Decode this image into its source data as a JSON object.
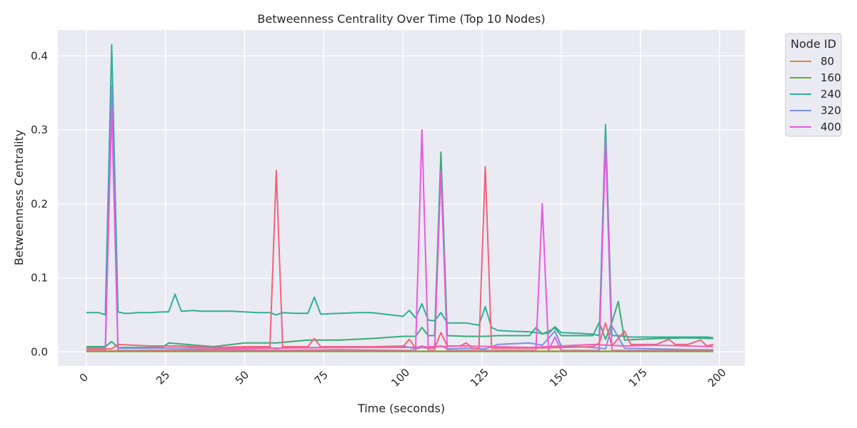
{
  "chart_data": {
    "type": "line",
    "title": "Betweenness Centrality Over Time (Top 10 Nodes)",
    "xlabel": "Time (seconds)",
    "ylabel": "Betweenness Centrality",
    "xlim": [
      -9,
      208
    ],
    "ylim": [
      -0.019,
      0.435
    ],
    "xticks": [
      0,
      25,
      50,
      75,
      100,
      125,
      150,
      175,
      200
    ],
    "xtick_labels": [
      "0",
      "25",
      "50",
      "75",
      "100",
      "125",
      "150",
      "175",
      "200"
    ],
    "yticks": [
      0.0,
      0.1,
      0.2,
      0.3,
      0.4
    ],
    "ytick_labels": [
      "0.0",
      "0.1",
      "0.2",
      "0.3",
      "0.4"
    ],
    "grid": true,
    "legend": {
      "title": "Node ID",
      "placement": "outside-top-right",
      "entries": [
        {
          "label": "80",
          "color": "#d98b3a"
        },
        {
          "label": "160",
          "color": "#6aab35"
        },
        {
          "label": "240",
          "color": "#2fb09a"
        },
        {
          "label": "320",
          "color": "#7a90e8"
        },
        {
          "label": "400",
          "color": "#e65be0"
        }
      ]
    },
    "series": [
      {
        "color": "#2fb09a",
        "x": [
          0,
          4,
          6,
          8,
          10,
          12,
          14,
          16,
          20,
          24,
          26,
          28,
          30,
          34,
          36,
          40,
          44,
          46,
          50,
          54,
          58,
          60,
          62,
          66,
          70,
          72,
          74,
          80,
          86,
          90,
          96,
          100,
          102,
          104,
          106,
          108,
          110,
          112,
          114,
          120,
          124,
          126,
          128,
          130,
          134,
          140,
          144,
          146,
          148,
          150,
          156,
          160,
          162,
          164,
          166,
          168,
          172,
          180,
          184,
          190,
          196,
          198
        ],
        "y": [
          0.053,
          0.053,
          0.05,
          0.415,
          0.054,
          0.052,
          0.052,
          0.053,
          0.053,
          0.054,
          0.054,
          0.078,
          0.055,
          0.056,
          0.055,
          0.055,
          0.055,
          0.055,
          0.054,
          0.053,
          0.053,
          0.05,
          0.053,
          0.052,
          0.052,
          0.074,
          0.051,
          0.052,
          0.053,
          0.053,
          0.05,
          0.048,
          0.056,
          0.046,
          0.065,
          0.043,
          0.042,
          0.053,
          0.039,
          0.039,
          0.036,
          0.061,
          0.033,
          0.029,
          0.028,
          0.027,
          0.025,
          0.025,
          0.034,
          0.026,
          0.025,
          0.024,
          0.022,
          0.307,
          0.022,
          0.022,
          0.02,
          0.02,
          0.02,
          0.02,
          0.02,
          0.019
        ]
      },
      {
        "color": "#36ad7a",
        "x": [
          0,
          6,
          8,
          10,
          20,
          24,
          26,
          40,
          50,
          60,
          70,
          80,
          90,
          100,
          104,
          106,
          108,
          110,
          112,
          114,
          120,
          126,
          130,
          140,
          142,
          144,
          148,
          150,
          160,
          162,
          164,
          166,
          168,
          170,
          180,
          190,
          198
        ],
        "y": [
          0.007,
          0.007,
          0.014,
          0.006,
          0.006,
          0.006,
          0.012,
          0.007,
          0.012,
          0.012,
          0.016,
          0.016,
          0.018,
          0.021,
          0.021,
          0.033,
          0.022,
          0.022,
          0.27,
          0.022,
          0.021,
          0.021,
          0.022,
          0.022,
          0.033,
          0.024,
          0.032,
          0.022,
          0.022,
          0.04,
          0.017,
          0.04,
          0.068,
          0.016,
          0.018,
          0.019,
          0.018
        ]
      },
      {
        "color": "#7a90e8",
        "x": [
          0,
          6,
          8,
          10,
          20,
          40,
          58,
          60,
          62,
          80,
          100,
          104,
          106,
          108,
          112,
          114,
          120,
          126,
          130,
          140,
          144,
          148,
          150,
          160,
          164,
          166,
          170,
          180,
          190,
          198
        ],
        "y": [
          0.005,
          0.005,
          0.36,
          0.005,
          0.005,
          0.006,
          0.006,
          0.004,
          0.006,
          0.006,
          0.008,
          0.004,
          0.006,
          0.005,
          0.008,
          0.004,
          0.005,
          0.004,
          0.01,
          0.012,
          0.009,
          0.028,
          0.008,
          0.006,
          0.004,
          0.035,
          0.005,
          0.004,
          0.003,
          0.003
        ]
      },
      {
        "color": "#e65be0",
        "x": [
          0,
          6,
          8,
          10,
          12,
          20,
          40,
          60,
          80,
          100,
          104,
          106,
          108,
          110,
          112,
          114,
          120,
          130,
          140,
          142,
          144,
          146,
          148,
          150,
          160,
          162,
          164,
          166,
          170,
          180,
          190,
          198
        ],
        "y": [
          0.002,
          0.002,
          0.33,
          0.002,
          0.002,
          0.002,
          0.003,
          0.002,
          0.003,
          0.002,
          0.002,
          0.3,
          0.002,
          0.002,
          0.245,
          0.002,
          0.002,
          0.002,
          0.002,
          0.002,
          0.2,
          0.002,
          0.02,
          0.002,
          0.002,
          0.002,
          0.285,
          0.002,
          0.002,
          0.002,
          0.002,
          0.002
        ]
      },
      {
        "color": "#f0637e",
        "x": [
          0,
          8,
          10,
          20,
          30,
          40,
          50,
          58,
          60,
          62,
          70,
          72,
          74,
          80,
          90,
          100,
          102,
          104,
          106,
          108,
          110,
          112,
          114,
          118,
          120,
          122,
          124,
          126,
          128,
          130,
          140,
          150,
          160,
          162,
          164,
          166,
          170,
          172,
          180,
          184,
          186,
          190,
          194,
          196,
          198
        ],
        "y": [
          0.004,
          0.004,
          0.01,
          0.008,
          0.008,
          0.006,
          0.007,
          0.007,
          0.245,
          0.007,
          0.007,
          0.018,
          0.007,
          0.007,
          0.007,
          0.007,
          0.017,
          0.005,
          0.008,
          0.005,
          0.005,
          0.026,
          0.008,
          0.008,
          0.012,
          0.005,
          0.005,
          0.25,
          0.005,
          0.005,
          0.005,
          0.006,
          0.007,
          0.012,
          0.039,
          0.008,
          0.028,
          0.01,
          0.01,
          0.017,
          0.01,
          0.01,
          0.016,
          0.008,
          0.01
        ]
      },
      {
        "color": "#f25fb4",
        "x": [
          0,
          20,
          40,
          60,
          80,
          100,
          110,
          120,
          140,
          150,
          160,
          170,
          180,
          190,
          198
        ],
        "y": [
          0.001,
          0.002,
          0.004,
          0.005,
          0.006,
          0.006,
          0.007,
          0.008,
          0.006,
          0.008,
          0.01,
          0.008,
          0.009,
          0.008,
          0.007
        ]
      },
      {
        "color": "#d98b3a",
        "x": [
          0,
          40,
          80,
          120,
          160,
          198
        ],
        "y": [
          0.001,
          0.001,
          0.001,
          0.001,
          0.001,
          0.001
        ]
      },
      {
        "color": "#6aab35",
        "x": [
          0,
          40,
          80,
          120,
          160,
          198
        ],
        "y": [
          0.0005,
          0.0005,
          0.0005,
          0.0005,
          0.0005,
          0.0005
        ]
      }
    ]
  }
}
